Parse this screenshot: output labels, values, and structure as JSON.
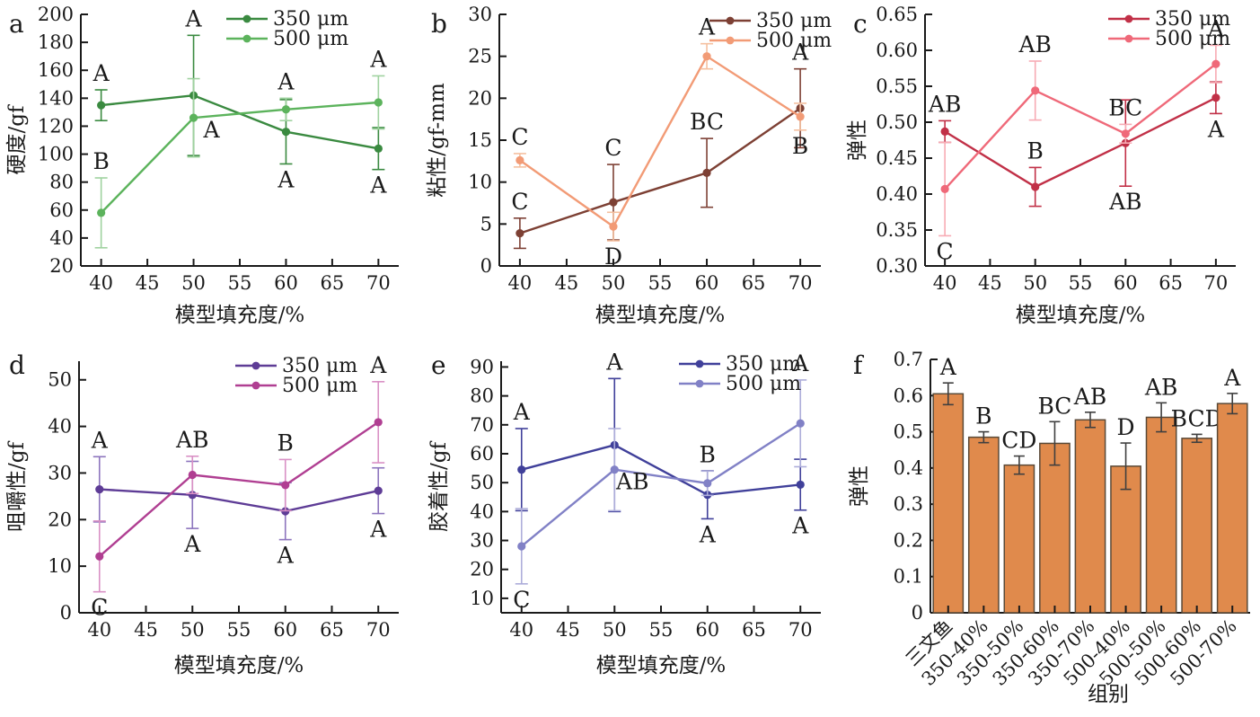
{
  "figure": {
    "background": "#ffffff",
    "axis_color": "#1a1a1a",
    "letter_color": "#2f2f2f",
    "x_tick_labels": [
      "40",
      "45",
      "50",
      "55",
      "60",
      "65",
      "70"
    ]
  },
  "chart_data": [
    {
      "id": "a",
      "panel_label": "a",
      "type": "line",
      "xlabel": "模型填充度/%",
      "ylabel": "硬度/gf",
      "xlim": [
        37.8,
        72.2
      ],
      "xticks": [
        40,
        45,
        50,
        55,
        60,
        65,
        70
      ],
      "ylim": [
        20,
        200
      ],
      "yticks": [
        20,
        40,
        60,
        80,
        100,
        120,
        140,
        160,
        180,
        200
      ],
      "ytick_labels": [
        "20",
        "40",
        "60",
        "80",
        "100",
        "120",
        "140",
        "160",
        "180",
        "200"
      ],
      "legend_position": "top-right",
      "series": [
        {
          "name": "350 μm",
          "color": "#3a8a40",
          "err_color": "#3a8a40",
          "points": [
            {
              "x": 40,
              "y": 135,
              "e": 11,
              "L": "A",
              "lp": "a"
            },
            {
              "x": 50,
              "y": 142,
              "e": 43,
              "L": "A",
              "lp": "a"
            },
            {
              "x": 60,
              "y": 116,
              "e": 23,
              "L": "A",
              "lp": "b"
            },
            {
              "x": 70,
              "y": 104,
              "e": 15,
              "L": "A",
              "lp": "b"
            }
          ]
        },
        {
          "name": "500 μm",
          "color": "#5cb35c",
          "err_color": "#9fd29f",
          "points": [
            {
              "x": 40,
              "y": 58,
              "e": 25,
              "L": "B",
              "lp": "a"
            },
            {
              "x": 50,
              "y": 126,
              "e": 28,
              "L": "A",
              "lp": "br"
            },
            {
              "x": 60,
              "y": 132,
              "e": 8,
              "L": "A",
              "lp": "a"
            },
            {
              "x": 70,
              "y": 137,
              "e": 19,
              "L": "A",
              "lp": "a"
            }
          ]
        }
      ]
    },
    {
      "id": "b",
      "panel_label": "b",
      "type": "line",
      "xlabel": "模型填充度/%",
      "ylabel": "粘性/gf-mm",
      "xlim": [
        37.8,
        72.2
      ],
      "xticks": [
        40,
        45,
        50,
        55,
        60,
        65,
        70
      ],
      "ylim": [
        0,
        30
      ],
      "yticks": [
        0,
        5,
        10,
        15,
        20,
        25,
        30
      ],
      "ytick_labels": [
        "0",
        "5",
        "10",
        "15",
        "20",
        "25",
        "30"
      ],
      "legend_position": "top-right",
      "series": [
        {
          "name": "350 μm",
          "color": "#7d4034",
          "err_color": "#7d4034",
          "points": [
            {
              "x": 40,
              "y": 3.9,
              "e": 1.8,
              "L": "C",
              "lp": "a"
            },
            {
              "x": 50,
              "y": 7.6,
              "e": 4.5,
              "L": "C",
              "lp": "a"
            },
            {
              "x": 60,
              "y": 11.1,
              "e": 4.1,
              "L": "BC",
              "lp": "a"
            },
            {
              "x": 70,
              "y": 18.8,
              "e": 4.7,
              "L": "A",
              "lp": "a"
            }
          ]
        },
        {
          "name": "500 μm",
          "color": "#f29b76",
          "err_color": "#f5c0a0",
          "points": [
            {
              "x": 40,
              "y": 12.6,
              "e": 0.8,
              "L": "C",
              "lp": "a"
            },
            {
              "x": 50,
              "y": 4.7,
              "e": 1.7,
              "L": "D",
              "lp": "b"
            },
            {
              "x": 60,
              "y": 25,
              "e": 1.5,
              "L": "A",
              "lp": "a"
            },
            {
              "x": 70,
              "y": 17.8,
              "e": 1.6,
              "L": "B",
              "lp": "b"
            }
          ]
        }
      ]
    },
    {
      "id": "c",
      "panel_label": "c",
      "type": "line",
      "xlabel": "模型填充度/%",
      "ylabel": "弹性",
      "xlim": [
        37.8,
        72.2
      ],
      "xticks": [
        40,
        45,
        50,
        55,
        60,
        65,
        70
      ],
      "ylim": [
        0.3,
        0.65
      ],
      "yticks": [
        0.3,
        0.35,
        0.4,
        0.45,
        0.5,
        0.55,
        0.6,
        0.65
      ],
      "ytick_labels": [
        "0.30",
        "0.35",
        "0.40",
        "0.45",
        "0.50",
        "0.55",
        "0.60",
        "0.65"
      ],
      "legend_position": "top-right",
      "series": [
        {
          "name": "350 μm",
          "color": "#c13047",
          "err_color": "#c13047",
          "points": [
            {
              "x": 40,
              "y": 0.487,
              "e": 0.015,
              "L": "AB",
              "lp": "a"
            },
            {
              "x": 50,
              "y": 0.41,
              "e": 0.027,
              "L": "B",
              "lp": "a"
            },
            {
              "x": 60,
              "y": 0.471,
              "e": 0.06,
              "L": "AB",
              "lp": "b"
            },
            {
              "x": 70,
              "y": 0.534,
              "e": 0.022,
              "L": "A",
              "lp": "b"
            }
          ]
        },
        {
          "name": "500 μm",
          "color": "#ef6979",
          "err_color": "#f7abb4",
          "points": [
            {
              "x": 40,
              "y": 0.407,
              "e": 0.065,
              "L": "C",
              "lp": "b"
            },
            {
              "x": 50,
              "y": 0.544,
              "e": 0.041,
              "L": "AB",
              "lp": "a"
            },
            {
              "x": 60,
              "y": 0.484,
              "e": 0.013,
              "L": "BC",
              "lp": "a"
            },
            {
              "x": 70,
              "y": 0.581,
              "e": 0.026,
              "L": "A",
              "lp": "a"
            }
          ]
        }
      ]
    },
    {
      "id": "d",
      "panel_label": "d",
      "type": "line",
      "xlabel": "模型填充度/%",
      "ylabel": "咀嚼性/gf",
      "xlim": [
        37.8,
        72.2
      ],
      "xticks": [
        40,
        45,
        50,
        55,
        60,
        65,
        70
      ],
      "ylim": [
        0,
        54
      ],
      "yticks": [
        0,
        10,
        20,
        30,
        40,
        50
      ],
      "ytick_labels": [
        "0",
        "10",
        "20",
        "30",
        "40",
        "50"
      ],
      "legend_position": "top-right",
      "series": [
        {
          "name": "350 μm",
          "color": "#5e3c96",
          "err_color": "#8d75bd",
          "points": [
            {
              "x": 40,
              "y": 26.5,
              "e": 7.0,
              "L": "A",
              "lp": "a"
            },
            {
              "x": 50,
              "y": 25.3,
              "e": 7.2,
              "L": "A",
              "lp": "b"
            },
            {
              "x": 60,
              "y": 21.8,
              "e": 6.1,
              "L": "A",
              "lp": "b"
            },
            {
              "x": 70,
              "y": 26.2,
              "e": 4.9,
              "L": "A",
              "lp": "b"
            }
          ]
        },
        {
          "name": "500 μm",
          "color": "#b03f92",
          "err_color": "#d990c5",
          "points": [
            {
              "x": 40,
              "y": 12.1,
              "e": 7.6,
              "L": "C",
              "lp": "b"
            },
            {
              "x": 50,
              "y": 29.6,
              "e": 4.0,
              "L": "AB",
              "lp": "a"
            },
            {
              "x": 60,
              "y": 27.4,
              "e": 5.5,
              "L": "B",
              "lp": "a"
            },
            {
              "x": 70,
              "y": 40.9,
              "e": 8.7,
              "L": "A",
              "lp": "a"
            }
          ]
        }
      ]
    },
    {
      "id": "e",
      "panel_label": "e",
      "type": "line",
      "xlabel": "模型填充度/%",
      "ylabel": "胶着性/gf",
      "xlim": [
        37.8,
        72.2
      ],
      "xticks": [
        40,
        45,
        50,
        55,
        60,
        65,
        70
      ],
      "ylim": [
        5,
        92
      ],
      "yticks": [
        10,
        20,
        30,
        40,
        50,
        60,
        70,
        80,
        90
      ],
      "ytick_labels": [
        "10",
        "20",
        "30",
        "40",
        "50",
        "60",
        "70",
        "80",
        "90"
      ],
      "legend_position": "top-right",
      "series": [
        {
          "name": "350 μm",
          "color": "#40409a",
          "err_color": "#40409a",
          "points": [
            {
              "x": 40,
              "y": 54.5,
              "e": 14.2,
              "L": "A",
              "lp": "a"
            },
            {
              "x": 50,
              "y": 63,
              "e": 23,
              "L": "A",
              "lp": "a"
            },
            {
              "x": 60,
              "y": 45.8,
              "e": 8.3,
              "L": "A",
              "lp": "b"
            },
            {
              "x": 70,
              "y": 49.3,
              "e": 8.8,
              "L": "A",
              "lp": "b"
            }
          ]
        },
        {
          "name": "500 μm",
          "color": "#8181c6",
          "err_color": "#adadda",
          "points": [
            {
              "x": 40,
              "y": 28,
              "e": 13,
              "L": "C",
              "lp": "b"
            },
            {
              "x": 50,
              "y": 54.5,
              "e": 14.2,
              "L": "AB",
              "lp": "br"
            },
            {
              "x": 60,
              "y": 49.8,
              "e": 4.2,
              "L": "B",
              "lp": "a"
            },
            {
              "x": 70,
              "y": 70.5,
              "e": 15,
              "L": "A",
              "lp": "a"
            }
          ]
        }
      ]
    },
    {
      "id": "f",
      "panel_label": "f",
      "type": "bar",
      "xlabel": "组别",
      "ylabel": "弹性",
      "ylim": [
        0,
        0.7
      ],
      "yticks": [
        0,
        0.1,
        0.2,
        0.3,
        0.4,
        0.5,
        0.6,
        0.7
      ],
      "ytick_labels": [
        "0",
        "0.1",
        "0.2",
        "0.3",
        "0.4",
        "0.5",
        "0.6",
        "0.7"
      ],
      "bar_color": "#e08a4c",
      "bar_edge": "#5a4a38",
      "err_color": "#3f3f3f",
      "categories": [
        "三文鱼",
        "350-40%",
        "350-50%",
        "350-60%",
        "350-70%",
        "500-40%",
        "500-50%",
        "500-60%",
        "500-70%"
      ],
      "values": [
        0.605,
        0.485,
        0.408,
        0.468,
        0.533,
        0.405,
        0.54,
        0.482,
        0.578
      ],
      "errors": [
        0.03,
        0.015,
        0.025,
        0.06,
        0.021,
        0.064,
        0.04,
        0.011,
        0.028
      ],
      "letters": [
        "A",
        "B",
        "CD",
        "BC",
        "AB",
        "D",
        "AB",
        "BCD",
        "A"
      ]
    }
  ]
}
